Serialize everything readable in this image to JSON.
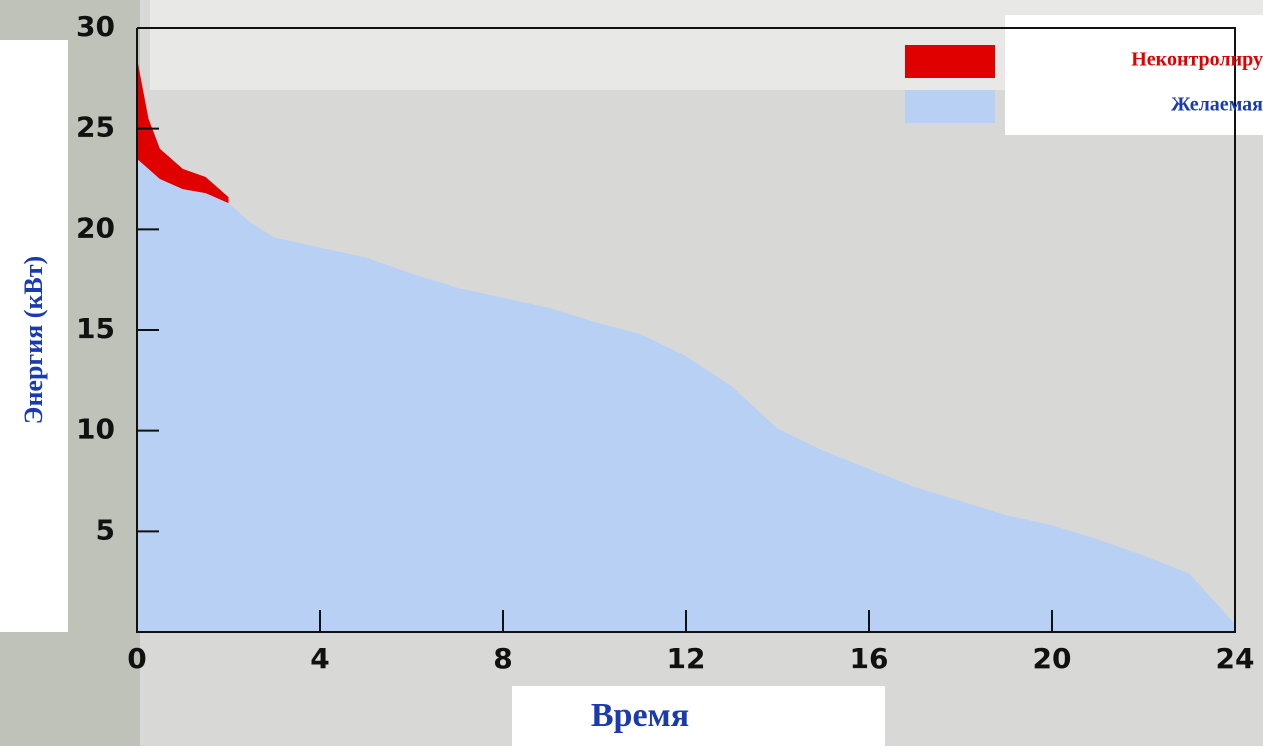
{
  "chart_data": {
    "type": "area",
    "x_label": "Время",
    "y_label": "Энергия (кВт)",
    "x": [
      0,
      0.25,
      0.5,
      1,
      1.5,
      2,
      2.5,
      3,
      4,
      5,
      6,
      7,
      8,
      9,
      10,
      11,
      12,
      13,
      14,
      15,
      16,
      17,
      18,
      19,
      20,
      21,
      22,
      23,
      24
    ],
    "series": [
      {
        "name": "Неконтролиру",
        "color": "#e00000",
        "values": [
          28.5,
          25.5,
          24.0,
          23.0,
          22.6,
          21.6,
          null,
          null,
          null,
          null,
          null,
          null,
          null,
          null,
          null,
          null,
          null,
          null,
          null,
          null,
          null,
          null,
          null,
          null,
          null,
          null,
          null,
          null,
          null
        ]
      },
      {
        "name": "Желаемая",
        "color": "#b8d0f4",
        "values": [
          23.5,
          23.0,
          22.5,
          22.0,
          21.8,
          21.3,
          20.3,
          19.6,
          19.1,
          18.6,
          17.8,
          17.1,
          16.6,
          16.1,
          15.4,
          14.8,
          13.7,
          12.2,
          10.1,
          9.0,
          8.1,
          7.2,
          6.5,
          5.8,
          5.3,
          4.6,
          3.8,
          2.9,
          0.4
        ]
      }
    ],
    "xlim": [
      0,
      24
    ],
    "xticks": [
      0,
      4,
      8,
      12,
      16,
      20,
      24
    ],
    "ylim": [
      0,
      30
    ],
    "yticks": [
      5,
      10,
      15,
      20,
      25,
      30
    ]
  }
}
